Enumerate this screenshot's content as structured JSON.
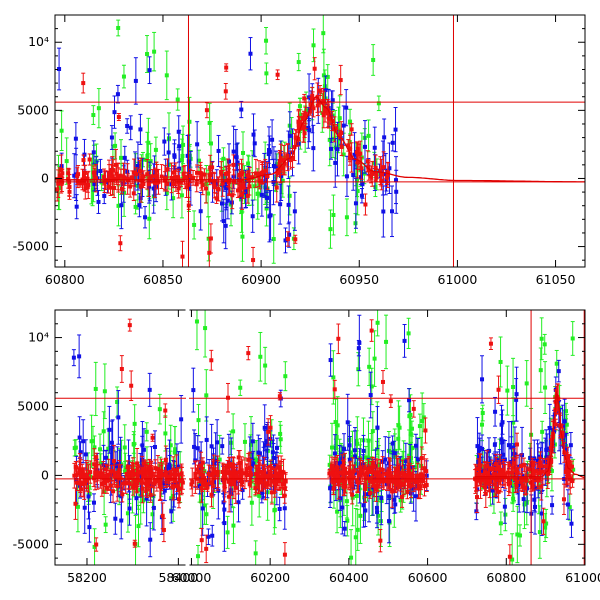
{
  "colors": {
    "blue": "#1010e6",
    "green": "#22ee22",
    "red": "#ee1111",
    "line": "#e00000",
    "axis": "#000000"
  },
  "chart_data": [
    {
      "type": "scatter",
      "title": "",
      "xlabel": "",
      "ylabel": "",
      "xlim": [
        60795,
        61065
      ],
      "ylim": [
        -6500,
        12000
      ],
      "x_ticks": [
        60800,
        60850,
        60900,
        60950,
        61000,
        61050
      ],
      "x_tick_labels": [
        "60800",
        "60850",
        "60900",
        "60950",
        "61000",
        "61050"
      ],
      "y_ticks": [
        -5000,
        0,
        5000,
        10000
      ],
      "y_tick_labels": [
        "-5000",
        "0",
        "5000",
        "10⁴"
      ],
      "vlines": [
        60863,
        60998
      ],
      "hlines": [
        -250,
        5600
      ],
      "series": [
        {
          "name": "blue",
          "color_key": "blue",
          "activity": [
            [
              60795,
              60970,
              1.0
            ]
          ],
          "scatter_sd": 1300,
          "outlier_rate": 0.2,
          "outlier_range": [
            -5500,
            10000
          ],
          "bias": 400,
          "count": 150
        },
        {
          "name": "green",
          "color_key": "green",
          "activity": [
            [
              60795,
              60960,
              1.0
            ]
          ],
          "scatter_sd": 1500,
          "outlier_rate": 0.25,
          "outlier_range": [
            -6000,
            11500
          ],
          "bias": 500,
          "count": 140
        },
        {
          "name": "red",
          "color_key": "red",
          "activity": [
            [
              60795,
              60965,
              1.0
            ]
          ],
          "scatter_sd": 600,
          "outlier_rate": 0.08,
          "outlier_range": [
            -6000,
            9000
          ],
          "bias": 0,
          "count": 260
        }
      ],
      "model_curve": {
        "x": [
          60795,
          60890,
          60905,
          60915,
          60922,
          60928,
          60933,
          60940,
          60948,
          60958,
          60975,
          61000,
          61065
        ],
        "y": [
          -100,
          -100,
          300,
          1500,
          4200,
          6000,
          5200,
          3000,
          1400,
          500,
          80,
          -150,
          -250
        ]
      }
    },
    {
      "type": "scatter",
      "title": "",
      "xlabel": "",
      "ylabel": "",
      "axis_break": {
        "before": 58420,
        "after": 59990
      },
      "xlim": [
        58130,
        61000
      ],
      "segment_ranges": [
        [
          58130,
          58420
        ],
        [
          59990,
          61000
        ]
      ],
      "x_ticks": [
        58200,
        58400,
        60000,
        60200,
        60400,
        60600,
        60800,
        61000
      ],
      "x_tick_labels": [
        "58200",
        "58400",
        "60000",
        "60200",
        "60400",
        "60600",
        "60800",
        "61000"
      ],
      "ylim": [
        -6500,
        12000
      ],
      "y_ticks": [
        -5000,
        0,
        5000,
        10000
      ],
      "y_tick_labels": [
        "-5000",
        "0",
        "5000",
        "10⁴"
      ],
      "vlines": [
        60863,
        60998
      ],
      "hlines": [
        -250,
        5600
      ],
      "seasons": [
        [
          58170,
          58410
        ],
        [
          60000,
          60240
        ],
        [
          60350,
          60600
        ],
        [
          60720,
          60970
        ]
      ],
      "series": [
        {
          "name": "blue",
          "color_key": "blue",
          "scatter_sd": 1500,
          "outlier_rate": 0.2,
          "outlier_range": [
            -5000,
            10000
          ],
          "bias": 600,
          "count": 280
        },
        {
          "name": "green",
          "color_key": "green",
          "scatter_sd": 2000,
          "outlier_rate": 0.3,
          "outlier_range": [
            -6000,
            12000
          ],
          "bias": 600,
          "count": 260
        },
        {
          "name": "red",
          "color_key": "red",
          "scatter_sd": 700,
          "outlier_rate": 0.08,
          "outlier_range": [
            -6000,
            11000
          ],
          "bias": 0,
          "count": 600
        }
      ]
    }
  ]
}
